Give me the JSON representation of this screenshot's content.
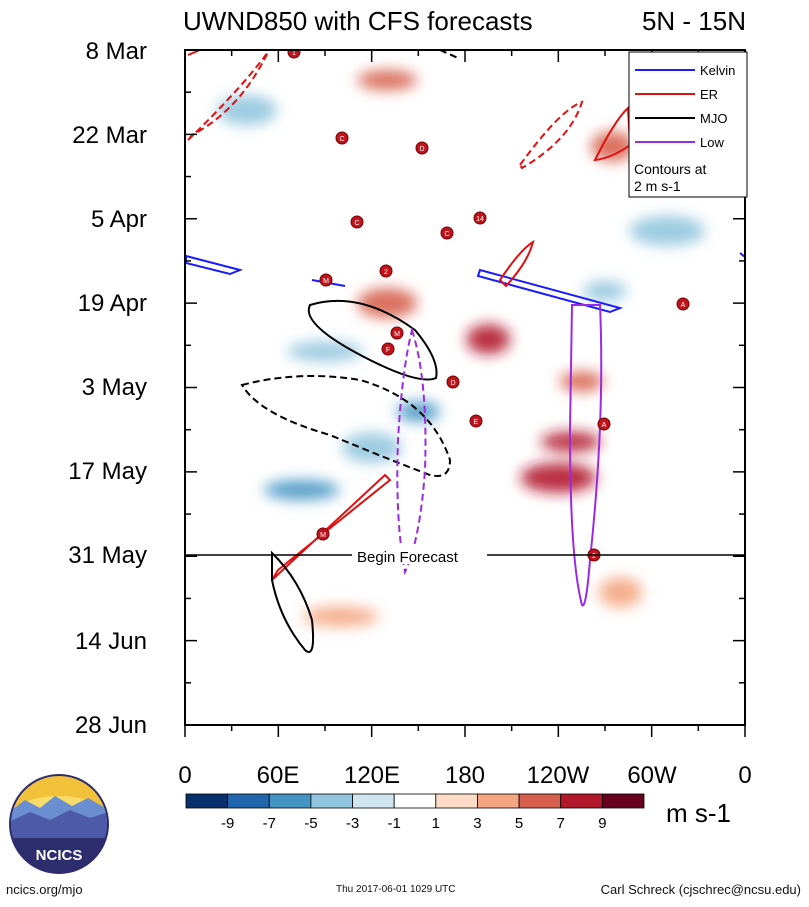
{
  "chart_data": {
    "type": "heatmap",
    "title": "UWND850 with CFS forecasts",
    "region": "5N - 15N",
    "y_tick_labels": [
      "8 Mar",
      "22 Mar",
      "5 Apr",
      "19 Apr",
      "3 May",
      "17 May",
      "31 May",
      "14 Jun",
      "28 Jun"
    ],
    "x_tick_labels": [
      "0",
      "60E",
      "120E",
      "180",
      "120W",
      "60W",
      "0"
    ],
    "x_range": [
      0,
      360
    ],
    "date_range": [
      "8 Mar",
      "28 Jun"
    ],
    "forecast_start": "31 May",
    "forecast_label": "Begin Forecast",
    "legend": {
      "entries": [
        {
          "name": "Kelvin",
          "color": "#1a1aff"
        },
        {
          "name": "ER",
          "color": "#e01010"
        },
        {
          "name": "MJO",
          "color": "#000000"
        },
        {
          "name": "Low",
          "color": "#9a2be2"
        }
      ],
      "note_line1": "Contours at",
      "note_line2": "2 m s-1"
    },
    "colorbar": {
      "levels": [
        "-9",
        "-7",
        "-5",
        "-3",
        "-1",
        "1",
        "3",
        "5",
        "7",
        "9"
      ],
      "colors": [
        "#08306b",
        "#2166ac",
        "#4393c3",
        "#92c5de",
        "#d1e5f0",
        "#ffffff",
        "#fddbc7",
        "#f4a582",
        "#d6604d",
        "#b2182b",
        "#67001f"
      ],
      "units": "m s-1"
    },
    "anomaly_features": [
      {
        "lon": 150,
        "day": 60,
        "value": -6
      },
      {
        "lon": 120,
        "day": 66,
        "value": -5
      },
      {
        "lon": 75,
        "day": 73,
        "value": -6
      },
      {
        "lon": 195,
        "day": 48,
        "value": 7
      },
      {
        "lon": 248,
        "day": 65,
        "value": 8
      },
      {
        "lon": 240,
        "day": 71,
        "value": 7
      },
      {
        "lon": 255,
        "day": 55,
        "value": 6
      },
      {
        "lon": 130,
        "day": 42,
        "value": 5
      },
      {
        "lon": 100,
        "day": 94,
        "value": 4
      },
      {
        "lon": 275,
        "day": 16,
        "value": 6
      },
      {
        "lon": 130,
        "day": 5,
        "value": 5
      },
      {
        "lon": 310,
        "day": 30,
        "value": -5
      },
      {
        "lon": 270,
        "day": 40,
        "value": -5
      },
      {
        "lon": 40,
        "day": 10,
        "value": -4
      },
      {
        "lon": 90,
        "day": 50,
        "value": -4
      },
      {
        "lon": 280,
        "day": 90,
        "value": 4
      }
    ],
    "storm_labels": [
      "1",
      "C",
      "D",
      "C",
      "14",
      "C",
      "2",
      "M",
      "M",
      "F",
      "D",
      "E",
      "A",
      "A",
      "M",
      "2"
    ]
  },
  "credits": {
    "logo_text": "NCICS",
    "url": "ncics.org/mjo",
    "timestamp": "Thu 2017-06-01 1029 UTC",
    "author": "Carl Schreck (cjschrec@ncsu.edu)"
  }
}
